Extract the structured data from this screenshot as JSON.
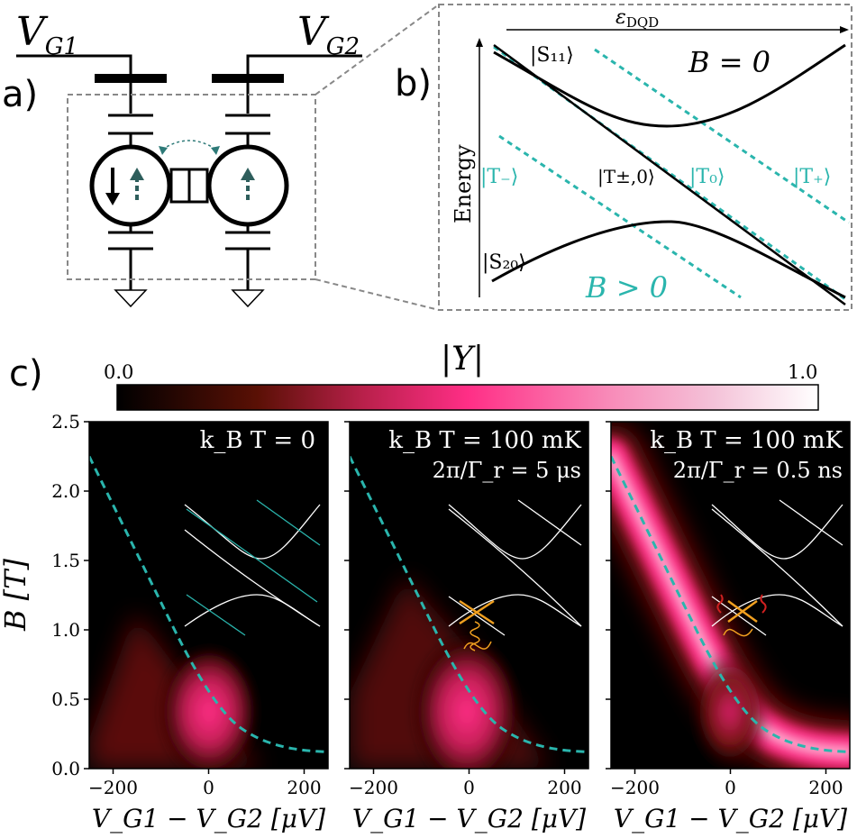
{
  "panel_a": {
    "label": "a)",
    "gate1_label": "V",
    "gate1_sub": "G1",
    "gate2_label": "V",
    "gate2_sub": "G2"
  },
  "panel_b": {
    "label": "b)",
    "x_axis_label": "ε",
    "x_axis_sub": "DQD",
    "y_axis_label": "Energy",
    "title_b0": "B = 0",
    "title_bpos": "B > 0",
    "state_s11": "|S₁₁⟩",
    "state_s20": "|S₂₀⟩",
    "state_tminus": "|T₋⟩",
    "state_tpm0": "|T±,0⟩",
    "state_t0": "|T₀⟩",
    "state_tplus": "|T₊⟩",
    "colors": {
      "singlet": "#000000",
      "triplet": "#2ab5ad"
    }
  },
  "panel_c": {
    "label": "c)",
    "colorbar": {
      "title": "|Y|",
      "min_label": "0.0",
      "max_label": "1.0"
    },
    "y_axis_label": "B [T]",
    "x_axis_label": "V_G1 − V_G2 [μV]",
    "x_ticks": [
      "−200",
      "0",
      "200"
    ],
    "y_ticks": [
      "0.0",
      "0.5",
      "1.0",
      "1.5",
      "2.0",
      "2.5"
    ],
    "subplots": [
      {
        "line1": "k_B T = 0",
        "line2": ""
      },
      {
        "line1": "k_B T = 100 mK",
        "line2": "2π/Γ_r = 5 μs"
      },
      {
        "line1": "k_B T = 100 mK",
        "line2": "2π/Γ_r = 0.5 ns"
      }
    ],
    "colors": {
      "dashed_curve": "#2ab5ad",
      "photon": "#f0a020",
      "relax": "#d02020"
    }
  },
  "chart_data": [
    {
      "type": "heatmap",
      "title": "k_B T = 0",
      "xlabel": "V_G1 − V_G2 [μV]",
      "ylabel": "B [T]",
      "xlim": [
        -250,
        250
      ],
      "ylim": [
        0,
        2.5
      ],
      "colorbar": {
        "label": "|Y|",
        "range": [
          0.0,
          1.0
        ]
      },
      "boundary_curve": {
        "x": [
          -250,
          -200,
          -150,
          -100,
          -50,
          0,
          50,
          100,
          150,
          200,
          250
        ],
        "y": [
          2.25,
          1.9,
          1.55,
          1.2,
          0.85,
          0.55,
          0.33,
          0.22,
          0.16,
          0.13,
          0.12
        ]
      }
    },
    {
      "type": "heatmap",
      "title": "k_B T = 100 mK, 2π/Γ_r = 5 μs",
      "xlabel": "V_G1 − V_G2 [μV]",
      "ylabel": "B [T]",
      "xlim": [
        -250,
        250
      ],
      "ylim": [
        0,
        2.5
      ],
      "colorbar": {
        "label": "|Y|",
        "range": [
          0.0,
          1.0
        ]
      },
      "boundary_curve": {
        "x": [
          -250,
          -200,
          -150,
          -100,
          -50,
          0,
          50,
          100,
          150,
          200,
          250
        ],
        "y": [
          2.25,
          1.9,
          1.55,
          1.2,
          0.85,
          0.55,
          0.33,
          0.22,
          0.16,
          0.13,
          0.12
        ]
      }
    },
    {
      "type": "heatmap",
      "title": "k_B T = 100 mK, 2π/Γ_r = 0.5 ns",
      "xlabel": "V_G1 − V_G2 [μV]",
      "ylabel": "B [T]",
      "xlim": [
        -250,
        250
      ],
      "ylim": [
        0,
        2.5
      ],
      "colorbar": {
        "label": "|Y|",
        "range": [
          0.0,
          1.0
        ]
      },
      "boundary_curve": {
        "x": [
          -250,
          -200,
          -150,
          -100,
          -50,
          0,
          50,
          100,
          150,
          200,
          250
        ],
        "y": [
          2.25,
          1.9,
          1.55,
          1.2,
          0.85,
          0.55,
          0.33,
          0.22,
          0.16,
          0.13,
          0.12
        ]
      }
    }
  ]
}
